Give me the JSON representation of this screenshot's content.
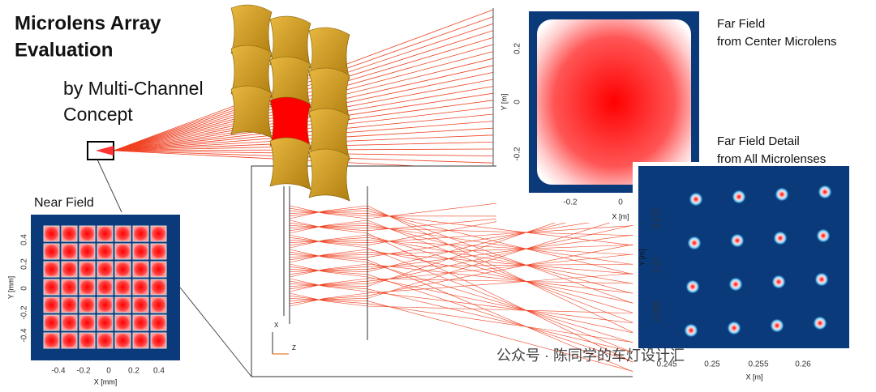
{
  "title": [
    "Microlens Array",
    "Evaluation"
  ],
  "subtitle": [
    "by Multi-Channel",
    "Concept"
  ],
  "near_field": {
    "label": "Near Field",
    "x_label": "X [mm]",
    "y_label": "Y [mm]",
    "x_ticks": [
      "-0.4",
      "-0.2",
      "0",
      "0.2",
      "0.4"
    ],
    "y_ticks": [
      "0.4",
      "0.2",
      "0",
      "-0.2",
      "-0.4"
    ]
  },
  "far_field": {
    "label": [
      "Far Field",
      "from Center Microlens"
    ],
    "x_label": "X [m]",
    "y_label": "Y [m]",
    "x_ticks": [
      "-0.2",
      "0"
    ],
    "y_ticks": [
      "0.2",
      "0",
      "-0.2"
    ]
  },
  "far_field_detail": {
    "label": [
      "Far Field Detail",
      "from All Microlenses"
    ],
    "x_label": "X [m]",
    "y_label": "Y [m]",
    "x_ticks": [
      "0.245",
      "0.25",
      "0.255",
      "0.26"
    ],
    "y_ticks": [
      "0.275",
      "0.27",
      "0.265"
    ]
  },
  "axis_triad": {
    "x": "X",
    "z": "Z"
  },
  "watermark": "公众号 · 陈同学的车灯设计汇"
}
